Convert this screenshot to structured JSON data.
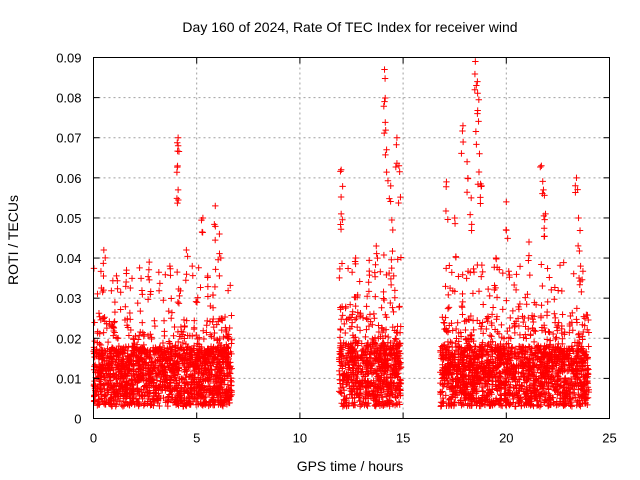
{
  "chart_data": {
    "type": "scatter",
    "title": "Day 160 of 2024, Rate Of TEC Index for receiver wind",
    "xlabel": "GPS time / hours",
    "ylabel": "ROTI / TECUs",
    "xlim": [
      0,
      25
    ],
    "ylim": [
      0,
      0.09
    ],
    "x_ticks": [
      0,
      5,
      10,
      15,
      20,
      25
    ],
    "y_ticks": [
      0,
      0.01,
      0.02,
      0.03,
      0.04,
      0.05,
      0.06,
      0.07,
      0.08,
      0.09
    ],
    "x_tick_labels": [
      "0",
      "5",
      "10",
      "15",
      "20",
      "25"
    ],
    "y_tick_labels": [
      "0",
      "0.01",
      "0.02",
      "0.03",
      "0.04",
      "0.05",
      "0.06",
      "0.07",
      "0.08",
      "0.09"
    ],
    "grid": true,
    "marker": "plus",
    "color": "#ff0000",
    "series": [
      {
        "name": "ROTI",
        "segments": [
          {
            "x_start": 0.0,
            "x_end": 6.7,
            "typical_min": 0.003,
            "typical_max": 0.025,
            "median": 0.012
          },
          {
            "x_start": 11.9,
            "x_end": 14.9,
            "typical_min": 0.003,
            "typical_max": 0.028,
            "median": 0.013
          },
          {
            "x_start": 16.8,
            "x_end": 24.0,
            "typical_min": 0.003,
            "typical_max": 0.026,
            "median": 0.012
          }
        ],
        "notable_points": [
          {
            "x": 0.5,
            "y": 0.042
          },
          {
            "x": 1.6,
            "y": 0.037
          },
          {
            "x": 2.7,
            "y": 0.039
          },
          {
            "x": 3.7,
            "y": 0.038
          },
          {
            "x": 4.1,
            "y": 0.07
          },
          {
            "x": 4.1,
            "y": 0.068
          },
          {
            "x": 4.1,
            "y": 0.057
          },
          {
            "x": 4.5,
            "y": 0.042
          },
          {
            "x": 5.3,
            "y": 0.05
          },
          {
            "x": 5.9,
            "y": 0.053
          },
          {
            "x": 6.1,
            "y": 0.046
          },
          {
            "x": 12.0,
            "y": 0.062
          },
          {
            "x": 12.0,
            "y": 0.051
          },
          {
            "x": 12.7,
            "y": 0.04
          },
          {
            "x": 13.7,
            "y": 0.043
          },
          {
            "x": 14.1,
            "y": 0.087
          },
          {
            "x": 14.1,
            "y": 0.079
          },
          {
            "x": 14.2,
            "y": 0.067
          },
          {
            "x": 14.4,
            "y": 0.058
          },
          {
            "x": 14.5,
            "y": 0.047
          },
          {
            "x": 14.7,
            "y": 0.07
          },
          {
            "x": 14.8,
            "y": 0.063
          },
          {
            "x": 17.1,
            "y": 0.059
          },
          {
            "x": 17.5,
            "y": 0.05
          },
          {
            "x": 17.9,
            "y": 0.073
          },
          {
            "x": 18.1,
            "y": 0.064
          },
          {
            "x": 18.3,
            "y": 0.055
          },
          {
            "x": 18.5,
            "y": 0.089
          },
          {
            "x": 18.6,
            "y": 0.084
          },
          {
            "x": 18.6,
            "y": 0.076
          },
          {
            "x": 18.7,
            "y": 0.066
          },
          {
            "x": 18.8,
            "y": 0.058
          },
          {
            "x": 19.5,
            "y": 0.04
          },
          {
            "x": 20.0,
            "y": 0.054
          },
          {
            "x": 21.1,
            "y": 0.044
          },
          {
            "x": 21.7,
            "y": 0.063
          },
          {
            "x": 21.8,
            "y": 0.057
          },
          {
            "x": 21.9,
            "y": 0.051
          },
          {
            "x": 23.4,
            "y": 0.06
          },
          {
            "x": 23.5,
            "y": 0.05
          },
          {
            "x": 23.6,
            "y": 0.038
          }
        ]
      }
    ]
  }
}
